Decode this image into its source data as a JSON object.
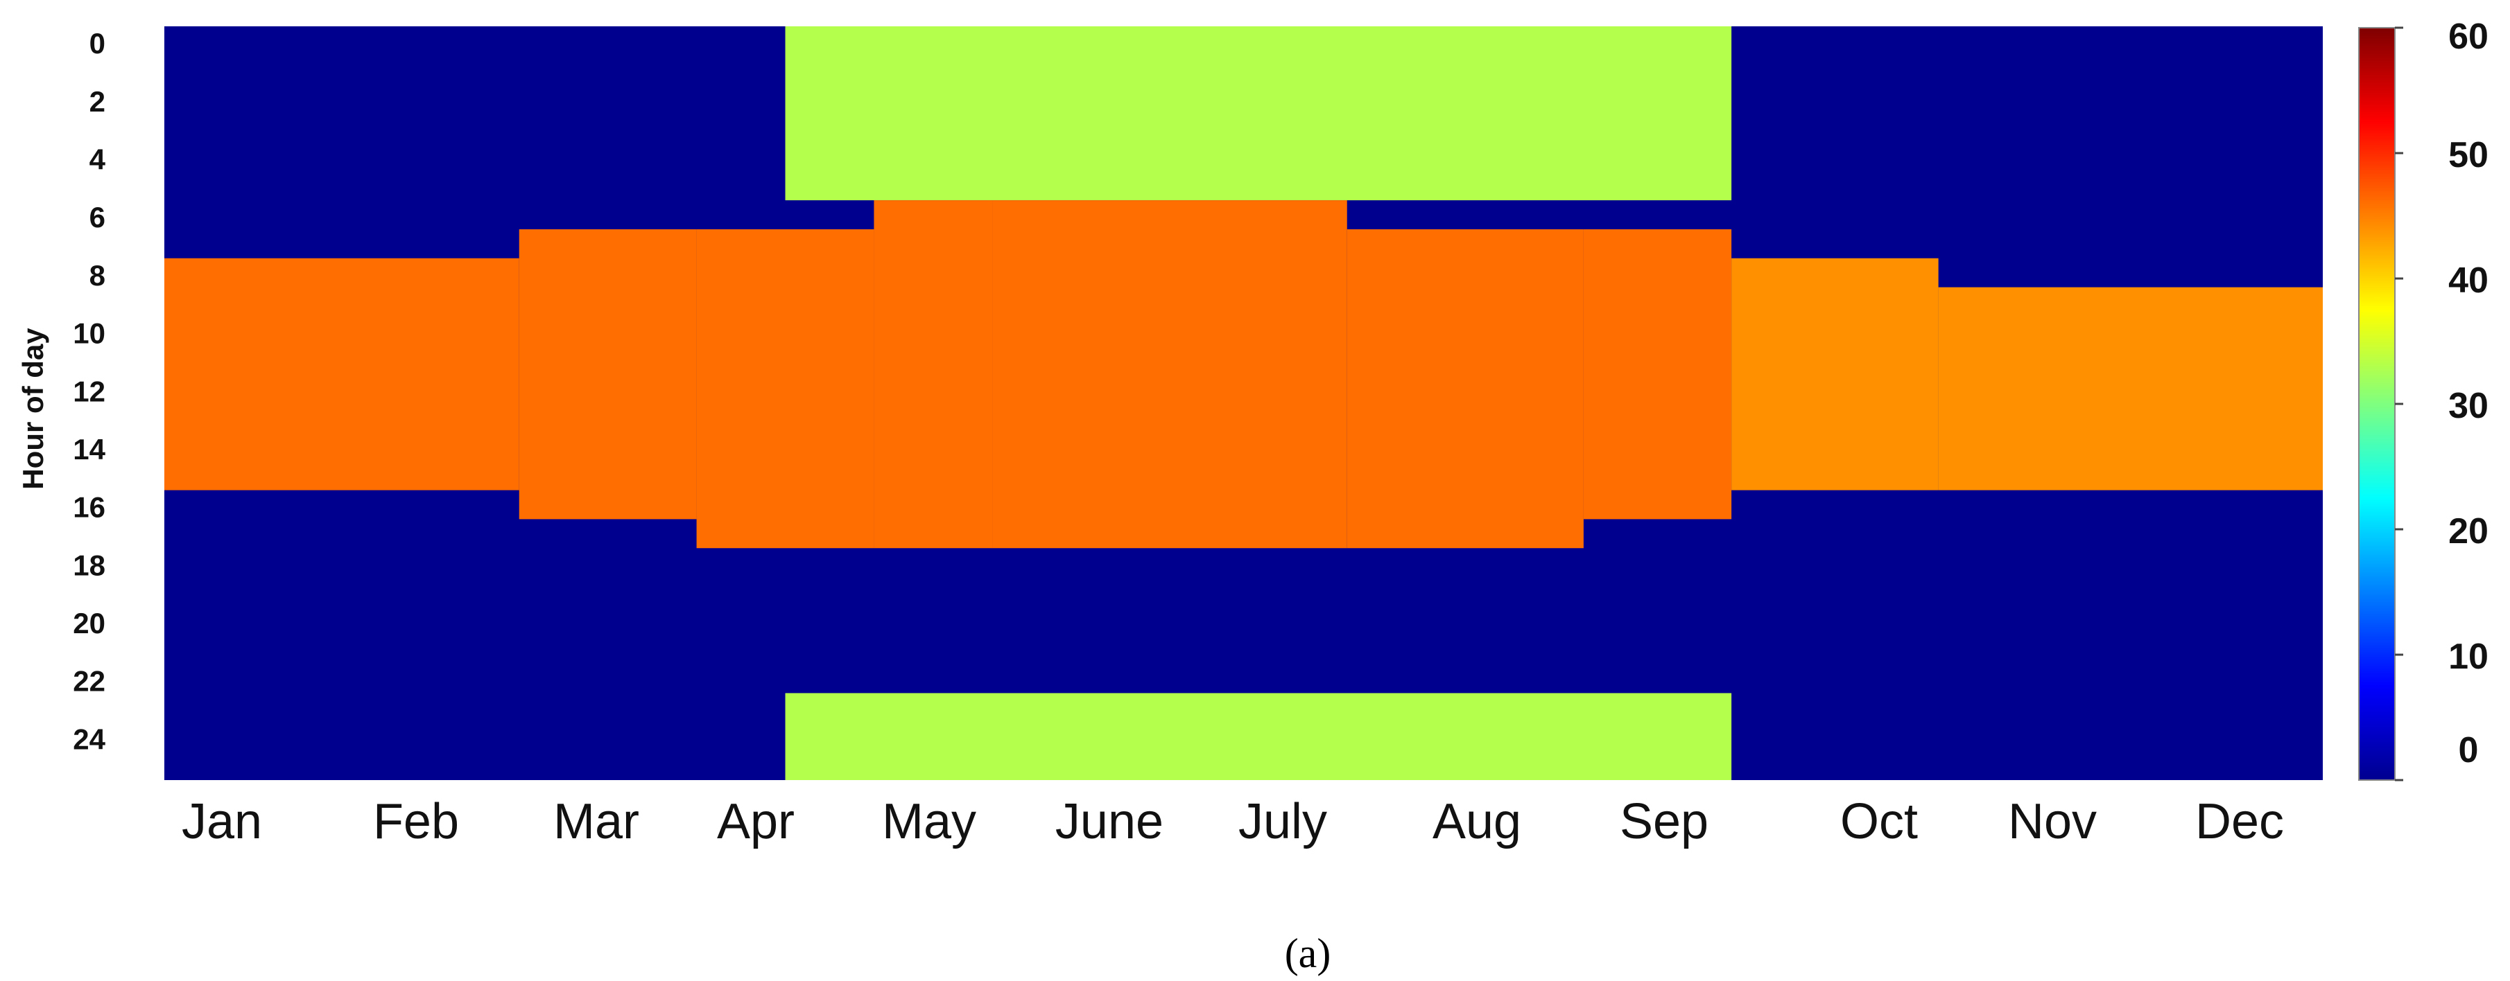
{
  "chart_data": {
    "type": "heatmap",
    "ylabel": "Hour of day",
    "y_ticks": [
      "0",
      "2",
      "4",
      "6",
      "8",
      "10",
      "12",
      "14",
      "16",
      "18",
      "20",
      "22",
      "24"
    ],
    "x_ticks": [
      "Jan",
      "Feb",
      "Mar",
      "Apr",
      "May",
      "June",
      "July",
      "Aug",
      "Sep",
      "Oct",
      "Nov",
      "Dec"
    ],
    "colorbar": {
      "ticks": [
        "0",
        "10",
        "20",
        "30",
        "40",
        "50",
        "60"
      ],
      "range": [
        0,
        60
      ],
      "colormap": "jet"
    },
    "hour_range": [
      0,
      26
    ],
    "days": 365,
    "value_levels": {
      "night_off": 0,
      "summer_night": 33,
      "daytime_peak": 46,
      "autumn_day": 44
    },
    "segments": [
      {
        "day_from": 0,
        "day_to": 60,
        "on_hour_from": 8,
        "on_hour_to": 16,
        "value": 46
      },
      {
        "day_from": 60,
        "day_to": 90,
        "on_hour_from": 7,
        "on_hour_to": 17,
        "value": 46
      },
      {
        "day_from": 90,
        "day_to": 120,
        "on_hour_from": 7,
        "on_hour_to": 18,
        "value": 46
      },
      {
        "day_from": 120,
        "day_to": 140,
        "on_hour_from": 6,
        "on_hour_to": 18,
        "value": 46
      },
      {
        "day_from": 140,
        "day_to": 200,
        "on_hour_from": 6,
        "on_hour_to": 18,
        "value": 46
      },
      {
        "day_from": 200,
        "day_to": 240,
        "on_hour_from": 7,
        "on_hour_to": 18,
        "value": 46
      },
      {
        "day_from": 240,
        "day_to": 265,
        "on_hour_from": 7,
        "on_hour_to": 17,
        "value": 46
      },
      {
        "day_from": 265,
        "day_to": 300,
        "on_hour_from": 8,
        "on_hour_to": 16,
        "value": 44
      },
      {
        "day_from": 300,
        "day_to": 365,
        "on_hour_from": 9,
        "on_hour_to": 16,
        "value": 44
      }
    ],
    "summer_night_fill": {
      "day_from": 105,
      "day_to": 265,
      "hours_early_to": 6,
      "hours_late_from": 23,
      "value": 33
    }
  },
  "caption": "(a)",
  "colors": {
    "background": "#ffffff",
    "off": "#00008f"
  }
}
